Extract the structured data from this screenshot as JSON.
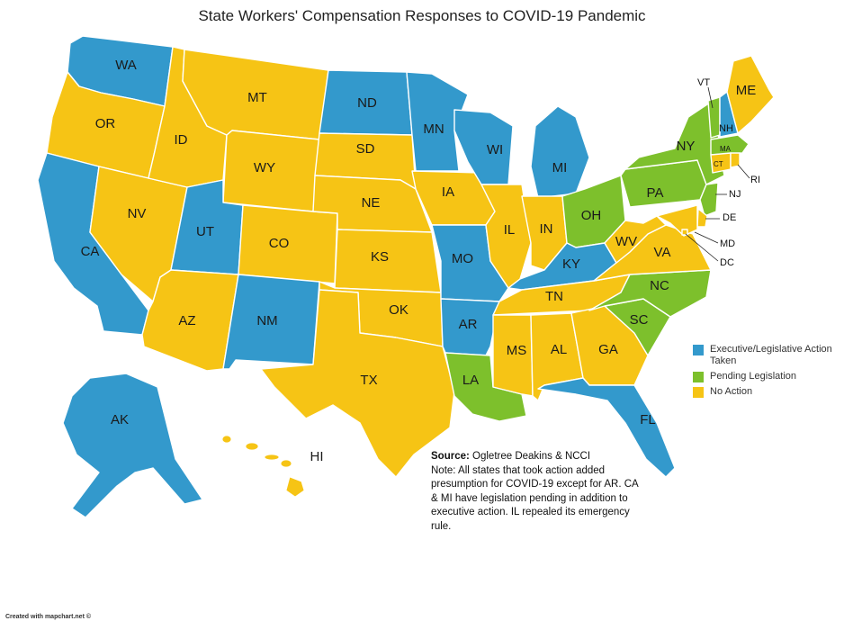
{
  "title": "State Workers' Compensation Responses to COVID-19 Pandemic",
  "colors": {
    "executive_action": "#3399cc",
    "pending_legislation": "#7dc02c",
    "no_action": "#f6c415"
  },
  "legend": [
    {
      "key": "executive_action",
      "label": "Executive/Legislative Action Taken"
    },
    {
      "key": "pending_legislation",
      "label": "Pending Legislation"
    },
    {
      "key": "no_action",
      "label": "No Action"
    }
  ],
  "source": {
    "label": "Source:",
    "text": "Ogletree Deakins & NCCI",
    "note": "Note: All states that took action added presumption for COVID-19 except for AR. CA & MI have legislation pending in addition to executive action. IL repealed its emergency rule."
  },
  "credit": "Created with mapchart.net ©",
  "states": {
    "WA": "executive_action",
    "OR": "no_action",
    "CA": "executive_action",
    "NV": "no_action",
    "ID": "no_action",
    "MT": "no_action",
    "WY": "no_action",
    "UT": "executive_action",
    "AZ": "no_action",
    "CO": "no_action",
    "NM": "executive_action",
    "ND": "executive_action",
    "SD": "no_action",
    "NE": "no_action",
    "KS": "no_action",
    "OK": "no_action",
    "TX": "no_action",
    "MN": "executive_action",
    "IA": "no_action",
    "MO": "executive_action",
    "AR": "executive_action",
    "LA": "pending_legislation",
    "WI": "executive_action",
    "IL": "no_action",
    "MI": "executive_action",
    "IN": "no_action",
    "OH": "pending_legislation",
    "KY": "executive_action",
    "TN": "no_action",
    "MS": "no_action",
    "AL": "no_action",
    "GA": "no_action",
    "FL": "executive_action",
    "SC": "pending_legislation",
    "NC": "pending_legislation",
    "VA": "no_action",
    "WV": "no_action",
    "PA": "pending_legislation",
    "NY": "pending_legislation",
    "VT": "pending_legislation",
    "NH": "executive_action",
    "ME": "no_action",
    "MA": "pending_legislation",
    "CT": "no_action",
    "RI": "no_action",
    "NJ": "pending_legislation",
    "DE": "no_action",
    "MD": "no_action",
    "DC": "no_action",
    "AK": "executive_action",
    "HI": "no_action"
  },
  "labels": {
    "WA": "WA",
    "OR": "OR",
    "CA": "CA",
    "NV": "NV",
    "ID": "ID",
    "MT": "MT",
    "WY": "WY",
    "UT": "UT",
    "AZ": "AZ",
    "CO": "CO",
    "NM": "NM",
    "ND": "ND",
    "SD": "SD",
    "NE": "NE",
    "KS": "KS",
    "OK": "OK",
    "TX": "TX",
    "MN": "MN",
    "IA": "IA",
    "MO": "MO",
    "AR": "AR",
    "LA": "LA",
    "WI": "WI",
    "IL": "IL",
    "MI": "MI",
    "IN": "IN",
    "OH": "OH",
    "KY": "KY",
    "TN": "TN",
    "MS": "MS",
    "AL": "AL",
    "GA": "GA",
    "FL": "FL",
    "SC": "SC",
    "NC": "NC",
    "VA": "VA",
    "WV": "WV",
    "PA": "PA",
    "NY": "NY",
    "VT": "VT",
    "NH": "NH",
    "ME": "ME",
    "MA": "MA",
    "CT": "CT",
    "RI": "RI",
    "NJ": "NJ",
    "DE": "DE",
    "MD": "MD",
    "DC": "DC",
    "AK": "AK",
    "HI": "HI"
  }
}
